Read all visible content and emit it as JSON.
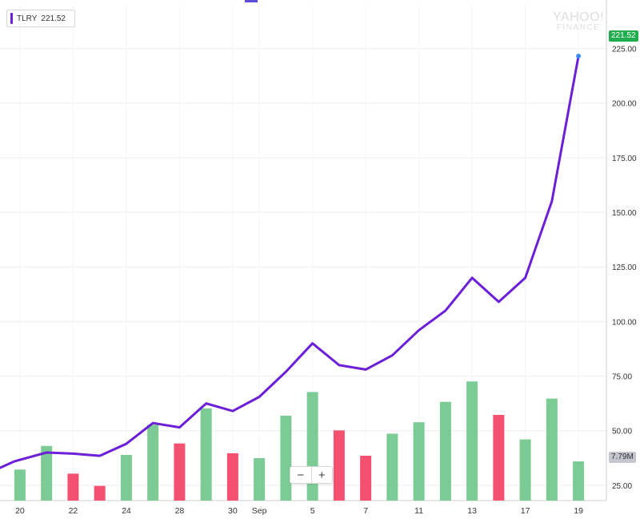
{
  "ticker": {
    "symbol": "TLRY",
    "price": "221.52"
  },
  "watermark": {
    "line1": "YAHOO!",
    "line2": "FINANCE"
  },
  "zoom": {
    "out_glyph": "−",
    "in_glyph": "+"
  },
  "colors": {
    "line": "#6b1fd8",
    "up_bar": "#7ccb94",
    "down_bar": "#f4506f",
    "price_flag": "#1fad4e",
    "volume_flag": "#c3c6cc",
    "grid": "#eeeeee",
    "axis_text": "#333333",
    "last_point": "#3d8df5"
  },
  "chart_data": {
    "type": "line",
    "title": "",
    "xlabel": "",
    "ylabel": "",
    "ylim": [
      18,
      245
    ],
    "yticks": [
      {
        "label": "225.00",
        "value": 225
      },
      {
        "label": "200.00",
        "value": 200
      },
      {
        "label": "175.00",
        "value": 175
      },
      {
        "label": "150.00",
        "value": 150
      },
      {
        "label": "125.00",
        "value": 125
      },
      {
        "label": "100.00",
        "value": 100
      },
      {
        "label": "75.00",
        "value": 75
      },
      {
        "label": "50.00",
        "value": 50
      },
      {
        "label": "25.00",
        "value": 25
      }
    ],
    "xticks": [
      {
        "label": "20",
        "index": 0.35
      },
      {
        "label": "22",
        "index": 2.35
      },
      {
        "label": "24",
        "index": 4.35
      },
      {
        "label": "28",
        "index": 6.35
      },
      {
        "label": "30",
        "index": 8.35
      },
      {
        "label": "Sep",
        "index": 9.35
      },
      {
        "label": "5",
        "index": 11.35
      },
      {
        "label": "7",
        "index": 13.35
      },
      {
        "label": "11",
        "index": 15.35
      },
      {
        "label": "13",
        "index": 17.35
      },
      {
        "label": "17",
        "index": 19.35
      },
      {
        "label": "19",
        "index": 21.35
      }
    ],
    "x_range": [
      -0.4,
      22.4
    ],
    "series": [
      {
        "values": [
          {
            "x": -0.4,
            "y": 33
          },
          {
            "x": 0.15,
            "y": 36
          },
          {
            "x": 1.35,
            "y": 40
          },
          {
            "x": 2.35,
            "y": 39.5
          },
          {
            "x": 3.35,
            "y": 38.5
          },
          {
            "x": 4.35,
            "y": 44
          },
          {
            "x": 5.35,
            "y": 53.5
          },
          {
            "x": 6.35,
            "y": 51.5
          },
          {
            "x": 7.35,
            "y": 62.5
          },
          {
            "x": 8.35,
            "y": 59
          },
          {
            "x": 9.35,
            "y": 65.5
          },
          {
            "x": 10.35,
            "y": 77
          },
          {
            "x": 11.35,
            "y": 90
          },
          {
            "x": 12.35,
            "y": 80
          },
          {
            "x": 13.35,
            "y": 78
          },
          {
            "x": 14.35,
            "y": 84.5
          },
          {
            "x": 15.35,
            "y": 96
          },
          {
            "x": 16.35,
            "y": 105
          },
          {
            "x": 17.35,
            "y": 120
          },
          {
            "x": 18.35,
            "y": 109
          },
          {
            "x": 19.35,
            "y": 120
          },
          {
            "x": 20.35,
            "y": 155
          },
          {
            "x": 21.35,
            "y": 221.52
          }
        ]
      }
    ],
    "volume": {
      "bars": [
        {
          "x": 0.35,
          "v": 0.38,
          "dir": "up"
        },
        {
          "x": 1.35,
          "v": 0.67,
          "dir": "up"
        },
        {
          "x": 2.35,
          "v": 0.33,
          "dir": "down"
        },
        {
          "x": 3.35,
          "v": 0.18,
          "dir": "down"
        },
        {
          "x": 4.35,
          "v": 0.56,
          "dir": "up"
        },
        {
          "x": 5.35,
          "v": 0.93,
          "dir": "up"
        },
        {
          "x": 6.35,
          "v": 0.7,
          "dir": "down"
        },
        {
          "x": 7.35,
          "v": 1.13,
          "dir": "up"
        },
        {
          "x": 8.35,
          "v": 0.58,
          "dir": "down"
        },
        {
          "x": 9.35,
          "v": 0.52,
          "dir": "up"
        },
        {
          "x": 10.35,
          "v": 1.04,
          "dir": "up"
        },
        {
          "x": 11.35,
          "v": 1.33,
          "dir": "up"
        },
        {
          "x": 12.35,
          "v": 0.86,
          "dir": "down"
        },
        {
          "x": 13.35,
          "v": 0.55,
          "dir": "down"
        },
        {
          "x": 14.35,
          "v": 0.82,
          "dir": "up"
        },
        {
          "x": 15.35,
          "v": 0.96,
          "dir": "up"
        },
        {
          "x": 16.35,
          "v": 1.21,
          "dir": "up"
        },
        {
          "x": 17.35,
          "v": 1.46,
          "dir": "up"
        },
        {
          "x": 18.35,
          "v": 1.05,
          "dir": "down"
        },
        {
          "x": 19.35,
          "v": 0.75,
          "dir": "up"
        },
        {
          "x": 20.35,
          "v": 1.25,
          "dir": "up"
        },
        {
          "x": 21.35,
          "v": 0.48,
          "dir": "up"
        }
      ],
      "max": 1.6,
      "last_label": "7.79M"
    },
    "last_price_label": "221.52",
    "grid": true
  }
}
